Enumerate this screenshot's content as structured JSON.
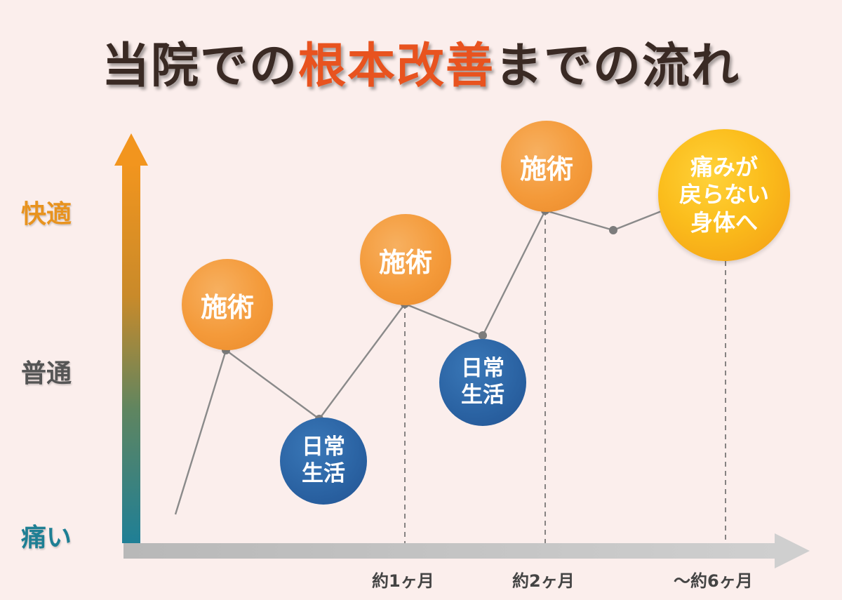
{
  "title": {
    "before": "当院での",
    "accent": "根本改善",
    "after": "までの流れ"
  },
  "y_axis_labels": {
    "top": "快適",
    "middle": "普通",
    "bottom": "痛い"
  },
  "x_axis_labels": [
    "約1ヶ月",
    "約2ヶ月",
    "〜約6ヶ月"
  ],
  "bubbles": {
    "treatment_1": "施術",
    "daily_1": "日常\n生活",
    "treatment_2": "施術",
    "daily_2": "日常\n生活",
    "treatment_3": "施術",
    "goal": "痛みが\n戻らない\n身体へ"
  },
  "colors": {
    "title_text": "#3a2a24",
    "title_accent": "#e8531f",
    "label_top": "#e8931f",
    "label_middle": "#555555",
    "label_bottom": "#1e7f94",
    "treatment_bubble": "#f49a3a",
    "daily_bubble": "#2a62a2",
    "goal_bubble": "#fbbd1c",
    "path_line": "#8a8a8a",
    "x_axis": "#c2c2c2"
  }
}
